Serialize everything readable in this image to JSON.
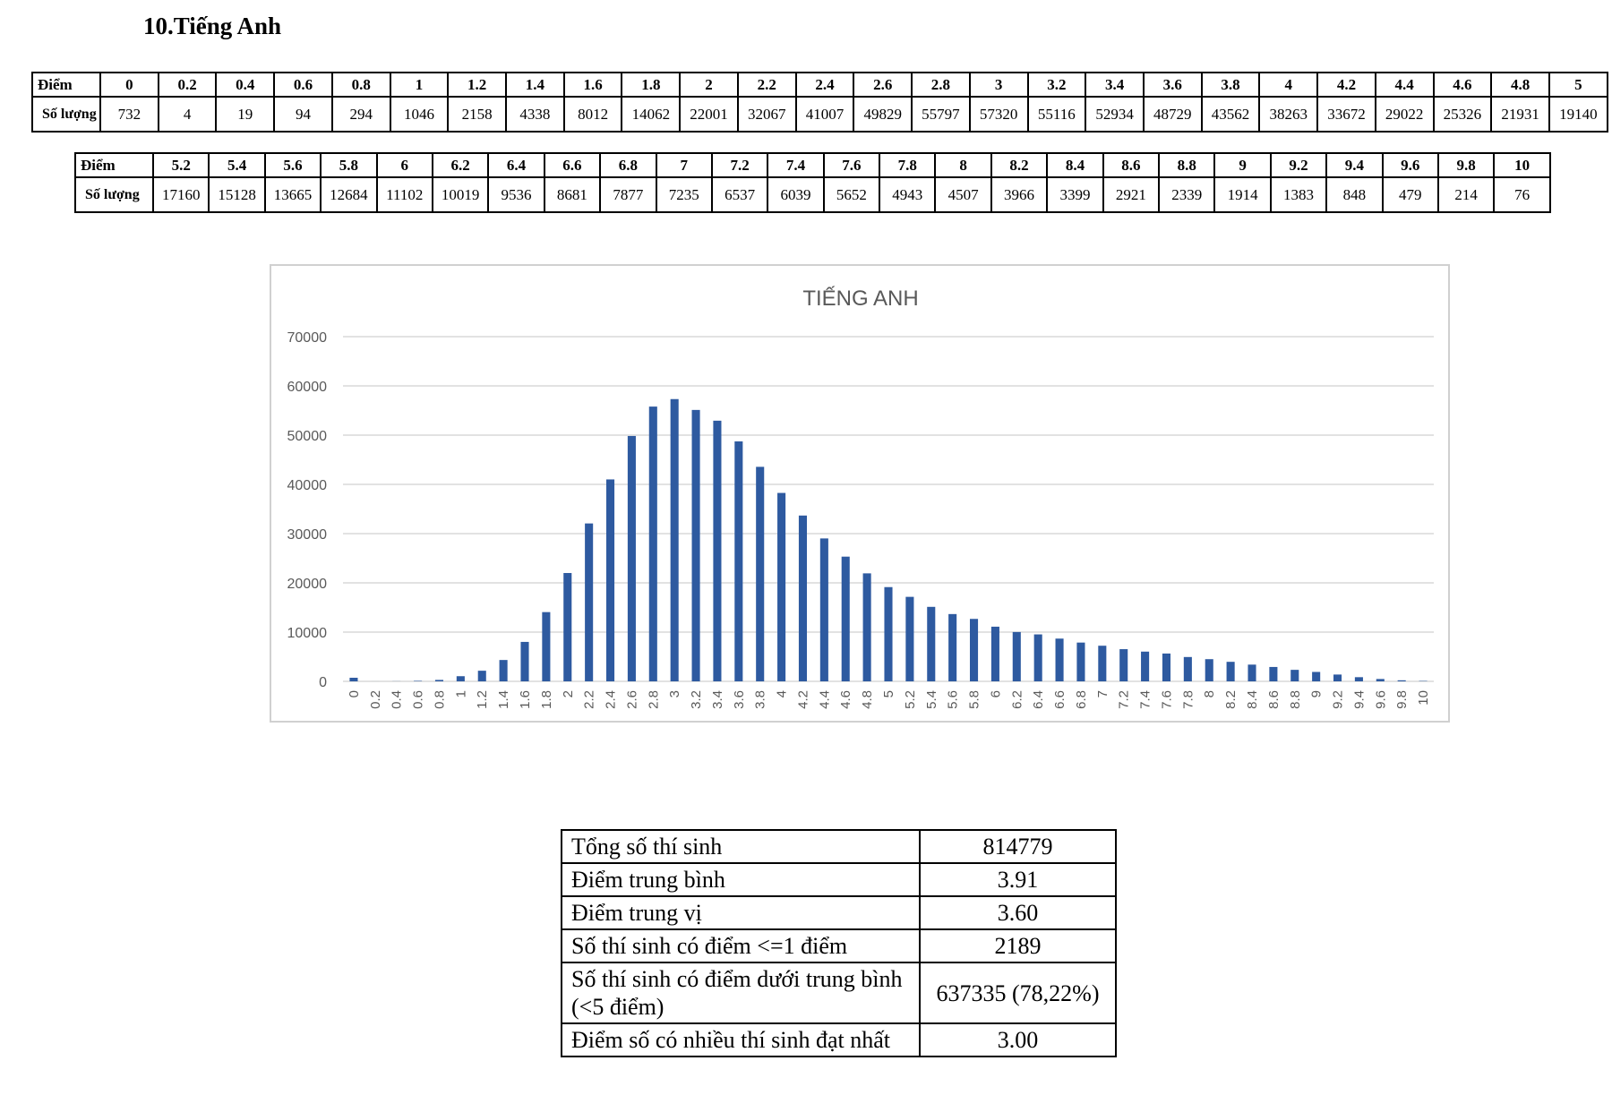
{
  "section_title": "10.Tiếng Anh",
  "table_header_label": "Điểm",
  "table_count_label": "Số lượng",
  "chart_data": {
    "type": "bar",
    "title": "TIẾNG ANH",
    "xlabel": "",
    "ylabel": "",
    "ylim": [
      0,
      70000
    ],
    "y_ticks": [
      "0",
      "10000",
      "20000",
      "30000",
      "40000",
      "50000",
      "60000",
      "70000"
    ],
    "grid": true,
    "legend": "none",
    "bar_color": "#2e5aa0",
    "categories": [
      "0",
      "0.2",
      "0.4",
      "0.6",
      "0.8",
      "1",
      "1.2",
      "1.4",
      "1.6",
      "1.8",
      "2",
      "2.2",
      "2.4",
      "2.6",
      "2.8",
      "3",
      "3.2",
      "3.4",
      "3.6",
      "3.8",
      "4",
      "4.2",
      "4.4",
      "4.6",
      "4.8",
      "5",
      "5.2",
      "5.4",
      "5.6",
      "5.8",
      "6",
      "6.2",
      "6.4",
      "6.6",
      "6.8",
      "7",
      "7.2",
      "7.4",
      "7.6",
      "7.8",
      "8",
      "8.2",
      "8.4",
      "8.6",
      "8.8",
      "9",
      "9.2",
      "9.4",
      "9.6",
      "9.8",
      "10"
    ],
    "values": [
      732,
      4,
      19,
      94,
      294,
      1046,
      2158,
      4338,
      8012,
      14062,
      22001,
      32067,
      41007,
      49829,
      55797,
      57320,
      55116,
      52934,
      48729,
      43562,
      38263,
      33672,
      29022,
      25326,
      21931,
      19140,
      17160,
      15128,
      13665,
      12684,
      11102,
      10019,
      9536,
      8681,
      7877,
      7235,
      6537,
      6039,
      5652,
      4943,
      4507,
      3966,
      3399,
      2921,
      2339,
      1914,
      1383,
      848,
      479,
      214,
      76
    ]
  },
  "summary": {
    "rows": [
      {
        "label": "Tổng số thí sinh",
        "value": "814779"
      },
      {
        "label": "Điểm trung bình",
        "value": "3.91"
      },
      {
        "label": "Điểm trung vị",
        "value": "3.60"
      },
      {
        "label": "Số thí sinh có điểm <=1 điểm",
        "value": "2189"
      },
      {
        "label": "Số thí sinh có điểm dưới trung bình (<5 điểm)",
        "value": "637335 (78,22%)"
      },
      {
        "label": "Điểm số có nhiều thí sinh đạt nhất",
        "value": "3.00"
      }
    ]
  }
}
